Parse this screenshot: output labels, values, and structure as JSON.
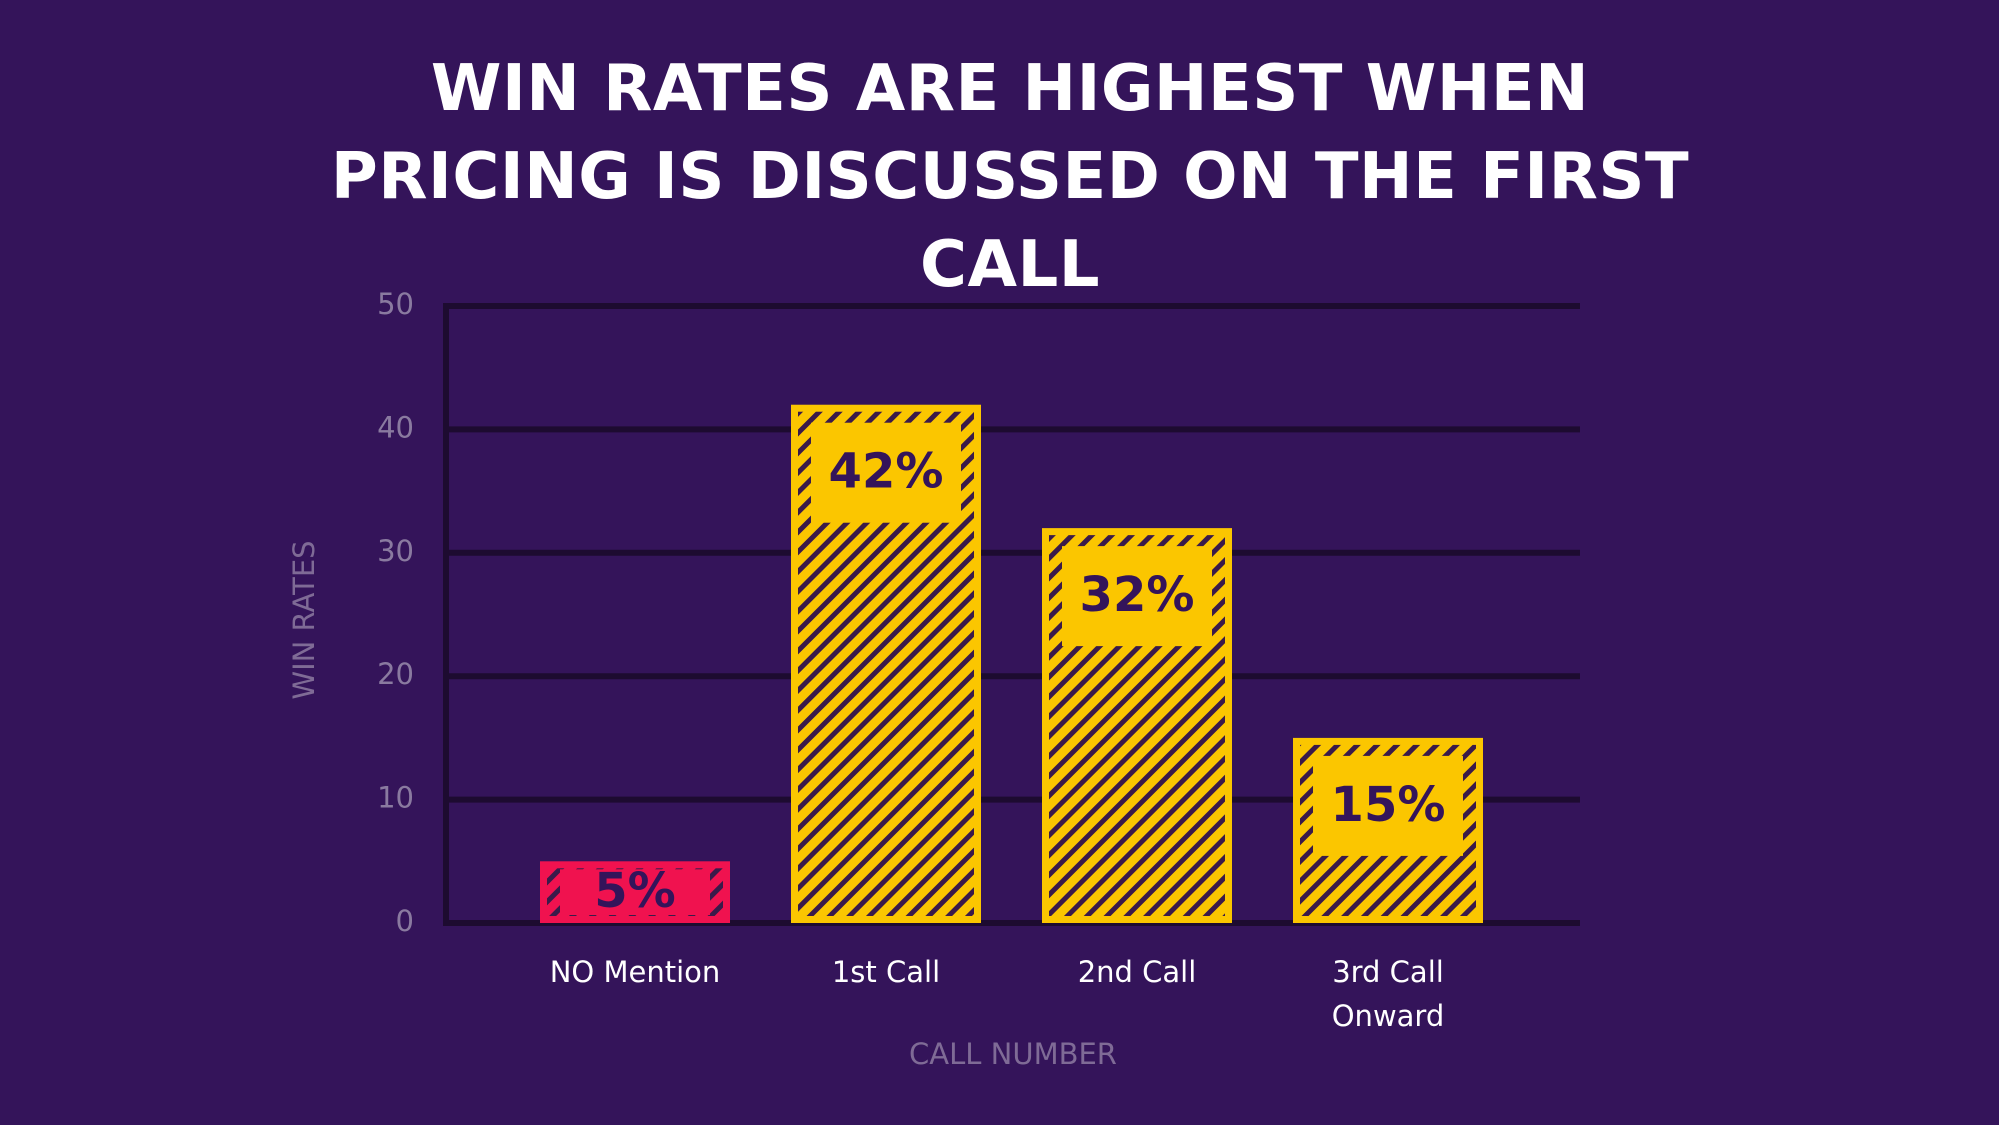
{
  "chart_data": {
    "type": "bar",
    "title": "WIN RATES ARE HIGHEST WHEN PRICING IS DISCUSSED ON THE FIRST CALL",
    "xlabel": "CALL NUMBER",
    "ylabel": "WIN RATES",
    "categories": [
      "NO Mention",
      "1st Call",
      "2nd Call",
      "3rd Call Onward"
    ],
    "values": [
      5,
      42,
      32,
      15
    ],
    "value_labels": [
      "5%",
      "42%",
      "32%",
      "15%"
    ],
    "colors": [
      "#f0124f",
      "#fbc600",
      "#fbc600",
      "#fbc600"
    ],
    "ylim": [
      0,
      50
    ],
    "yticks": [
      0,
      10,
      20,
      30,
      40,
      50
    ],
    "grid": true
  }
}
